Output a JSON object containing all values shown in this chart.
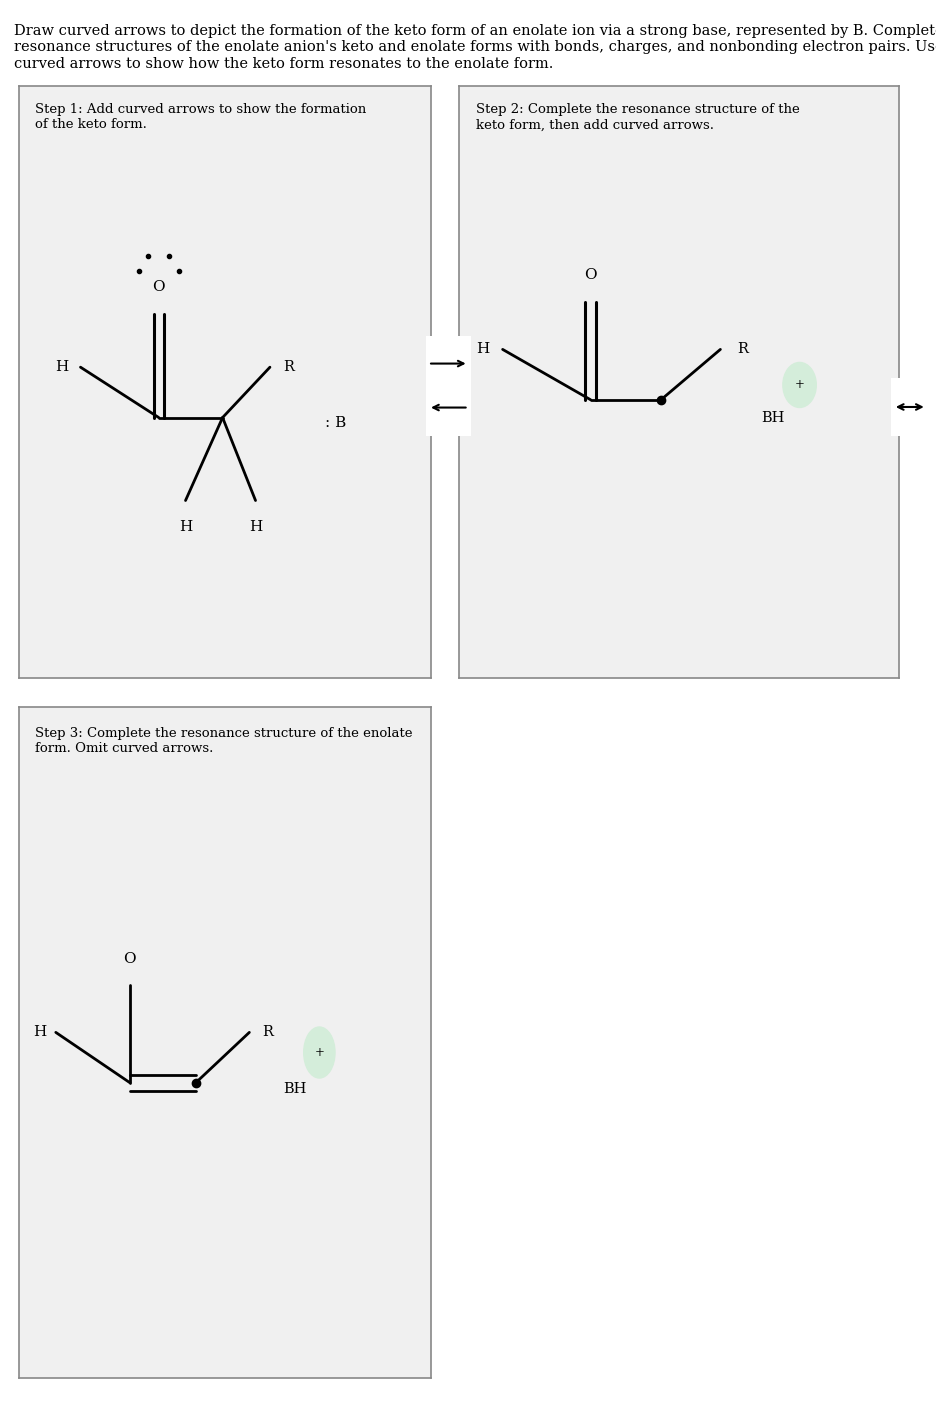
{
  "title_text": "Draw curved arrows to depict the formation of the keto form of an enolate ion via a strong base, represented by B. Complete the\nresonance structures of the enolate anion's keto and enolate forms with bonds, charges, and nonbonding electron pairs. Use\ncurved arrows to show how the keto form resonates to the enolate form.",
  "bg_color": "#f0f0f0",
  "box_bg": "#f0f0f0",
  "box_border": "#888888",
  "step1_label": "Step 1: Add curved arrows to show the formation\nof the keto form.",
  "step2_label": "Step 2: Complete the resonance structure of the\nketo form, then add curved arrows.",
  "step3_label": "Step 3: Complete the resonance structure of the enolate\nform. Omit curved arrows.",
  "font_color": "#000000",
  "bh_circle_color": "#d4edda"
}
